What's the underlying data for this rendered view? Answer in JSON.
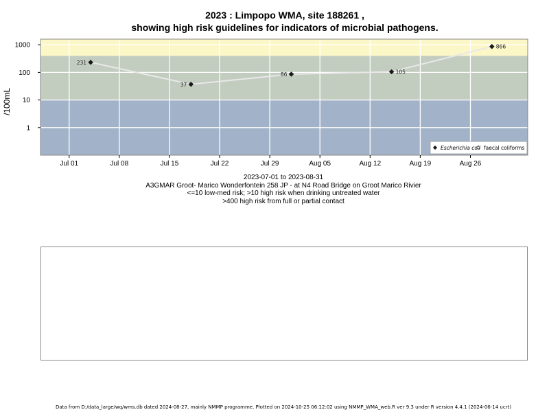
{
  "title_line1": "2023 : Limpopo WMA, site 188261 ,",
  "title_line2": "showing high risk guidelines for indicators of microbial pathogens.",
  "subtitle": {
    "date_range": "2023-07-01 to 2023-08-31",
    "site": "A3GMAR Groot- Marico Wonderfontein 258 JP - at N4 Road Bridge on Groot Marico Rivier",
    "guideline1": "<=10 low-med risk; >10 high risk when drinking untreated water",
    "guideline2": ">400 high risk from full or partial contact"
  },
  "footer": "Data from D:/data_large/wq/wms.db dated 2024-08-27, mainly NMMP programme. Plotted on 2024-10-25 06:12:02 using NMMP_WMA_web.R ver 9.3 under R version 4.4.1 (2024-06-14 ucrt)",
  "chart_data": {
    "type": "line",
    "ylabel": "/100mL",
    "y_scale": "log10",
    "yticks": [
      1,
      10,
      100,
      1000
    ],
    "ytick_labels": [
      "1",
      "10",
      "100",
      "1000"
    ],
    "ylim": [
      0.1,
      1600
    ],
    "xlim": [
      "2023-06-27",
      "2023-09-03"
    ],
    "xticks": [
      "2023-07-01",
      "2023-07-08",
      "2023-07-15",
      "2023-07-22",
      "2023-07-29",
      "2023-08-05",
      "2023-08-12",
      "2023-08-19",
      "2023-08-26"
    ],
    "xtick_labels": [
      "Jul 01",
      "Jul 08",
      "Jul 15",
      "Jul 22",
      "Jul 29",
      "Aug 05",
      "Aug 12",
      "Aug 19",
      "Aug 26"
    ],
    "grid": true,
    "bands": [
      {
        "from": 0.1,
        "to": 10,
        "color": "#a2b3c9"
      },
      {
        "from": 10,
        "to": 400,
        "color": "#c2ccbf"
      },
      {
        "from": 400,
        "to": 1600,
        "color": "#fcf7c7"
      }
    ],
    "series": [
      {
        "name": "Escherichia coli",
        "marker": "filled-diamond",
        "line_color": "#e8e8e8",
        "x": [
          "2023-07-04",
          "2023-07-18",
          "2023-08-01",
          "2023-08-15",
          "2023-08-29"
        ],
        "values": [
          231,
          37,
          86,
          105,
          866
        ],
        "labels": [
          "231",
          "37",
          "86",
          "105",
          "866"
        ]
      }
    ],
    "legend": {
      "position": "bottom-right",
      "entries": [
        {
          "label": "Escherichia coli",
          "marker": "filled-diamond",
          "italic": true
        },
        {
          "label": "faecal coliforms",
          "marker": "open-diamond",
          "italic": false
        }
      ]
    }
  }
}
